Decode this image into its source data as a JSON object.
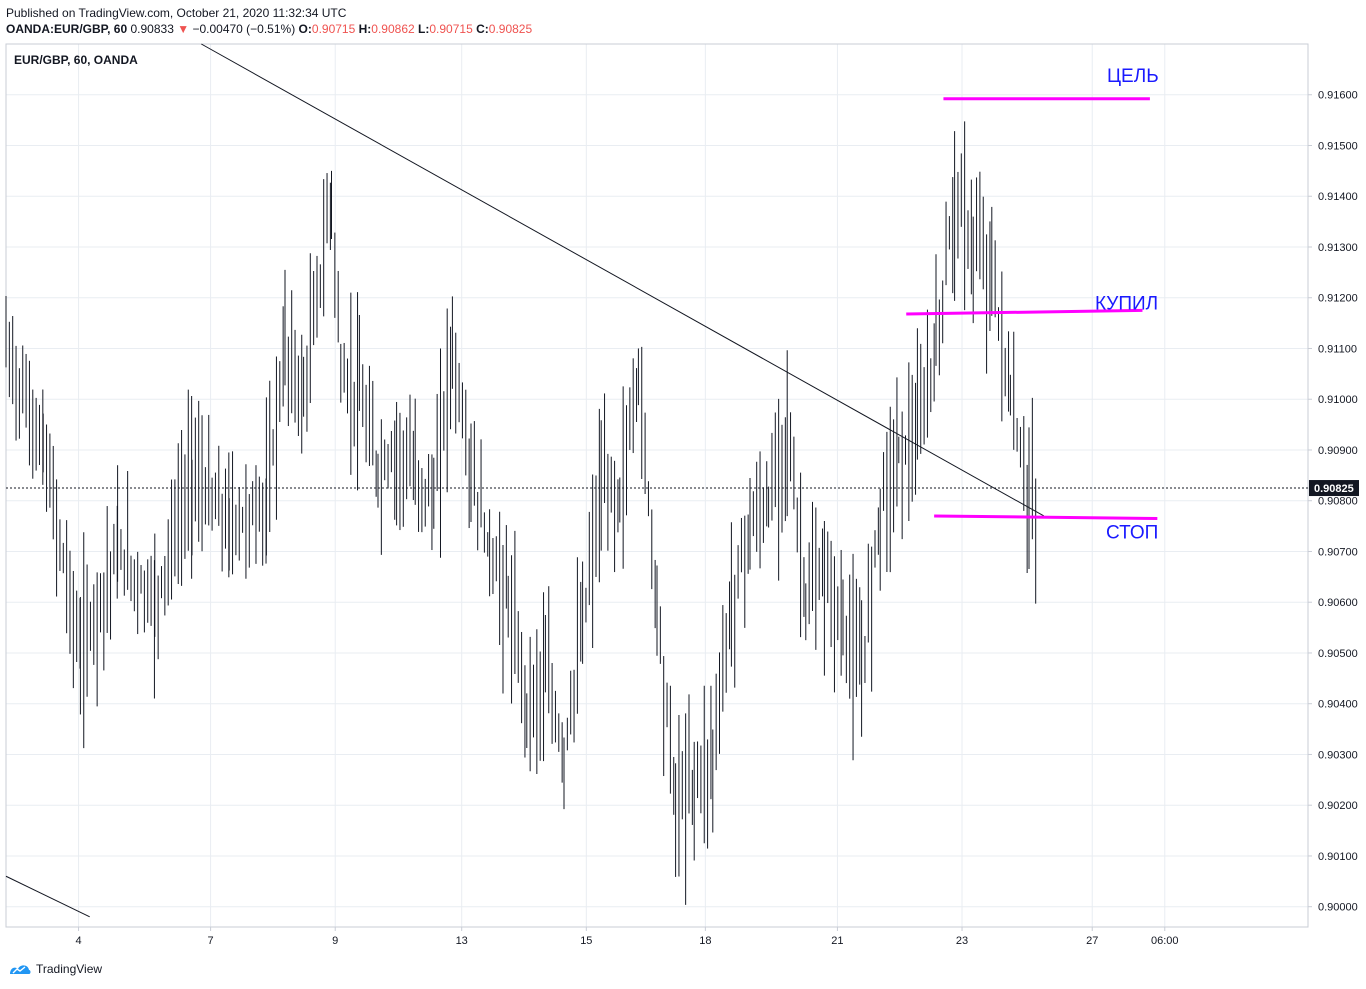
{
  "header": {
    "published": "Published on TradingView.com, October 21, 2020 11:32:34 UTC",
    "symbol": "OANDA:EUR/GBP, 60",
    "last": "0.90833",
    "arrow": "▼",
    "change": "−0.00470 (−0.51%)",
    "o_label": "O:",
    "o": "0.90715",
    "h_label": "H:",
    "h": "0.90862",
    "l_label": "L:",
    "l": "0.90715",
    "c_label": "C:",
    "c": "0.90825"
  },
  "footer": {
    "brand": "TradingView"
  },
  "colors": {
    "accent": "#ef5350",
    "annotation": "#ff00ff",
    "label": "#1a1aff",
    "grid": "#e9edf2"
  },
  "chart_data": {
    "type": "line",
    "title": "EUR/GBP, 60, OANDA",
    "ylim": [
      0.8996,
      0.917
    ],
    "y_ticks": [
      0.9,
      0.901,
      0.902,
      0.903,
      0.904,
      0.905,
      0.906,
      0.907,
      0.908,
      0.909,
      0.91,
      0.911,
      0.912,
      0.913,
      0.914,
      0.915,
      0.916
    ],
    "y_tick_labels": [
      "0.90000",
      "0.90100",
      "0.90200",
      "0.90300",
      "0.90400",
      "0.90500",
      "0.90600",
      "0.90700",
      "0.90800",
      "0.90900",
      "0.91000",
      "0.91100",
      "0.91200",
      "0.91300",
      "0.91400",
      "0.91500",
      "0.91600"
    ],
    "x_ticks": [
      "4",
      "7",
      "9",
      "13",
      "15",
      "18",
      "21",
      "23",
      "27",
      "06:00"
    ],
    "last_price_label": "0.90825",
    "last_price": 0.90825,
    "grid": true,
    "price_path": [
      [
        0,
        0.911
      ],
      [
        2,
        0.909
      ],
      [
        4,
        0.905
      ],
      [
        6,
        0.907
      ],
      [
        8,
        0.906
      ],
      [
        10,
        0.9085
      ],
      [
        12,
        0.9075
      ],
      [
        14,
        0.9079
      ],
      [
        15,
        0.911
      ],
      [
        16,
        0.91
      ],
      [
        17.5,
        0.914
      ],
      [
        18,
        0.9105
      ],
      [
        19,
        0.91
      ],
      [
        20,
        0.9085
      ],
      [
        21,
        0.909
      ],
      [
        22,
        0.9085
      ],
      [
        23,
        0.908
      ],
      [
        24,
        0.911
      ],
      [
        25,
        0.9085
      ],
      [
        26,
        0.907
      ],
      [
        27,
        0.906
      ],
      [
        28,
        0.904
      ],
      [
        29,
        0.9045
      ],
      [
        30,
        0.903
      ],
      [
        31,
        0.9055
      ],
      [
        32,
        0.9082
      ],
      [
        33,
        0.908
      ],
      [
        34,
        0.9105
      ],
      [
        35,
        0.906
      ],
      [
        36,
        0.902
      ],
      [
        37,
        0.9025
      ],
      [
        38,
        0.903
      ],
      [
        39,
        0.906
      ],
      [
        40,
        0.9075
      ],
      [
        41,
        0.9079
      ],
      [
        42,
        0.9095
      ],
      [
        43,
        0.906
      ],
      [
        44,
        0.9065
      ],
      [
        45,
        0.9055
      ],
      [
        46,
        0.9045
      ],
      [
        47,
        0.908
      ],
      [
        48,
        0.909
      ],
      [
        49,
        0.9092
      ],
      [
        50,
        0.911
      ],
      [
        51,
        0.914
      ],
      [
        52,
        0.913
      ],
      [
        53,
        0.9125
      ],
      [
        54,
        0.91
      ],
      [
        55,
        0.908
      ],
      [
        55.5,
        0.9078
      ]
    ],
    "trendlines": [
      {
        "x1": 10.5,
        "y1": 0.917,
        "x2": 55.8,
        "y2": 0.9077
      },
      {
        "x1": 0,
        "y1": 0.9006,
        "x2": 4.5,
        "y2": 0.8998
      }
    ],
    "levels": [
      {
        "label": "ЦЕЛЬ",
        "y_start": 0.91592,
        "y_end": 0.91592,
        "x_start": 50.4,
        "x_end": 61.5
      },
      {
        "label": "КУПИЛ",
        "y_start": 0.91168,
        "y_end": 0.91175,
        "x_start": 48.4,
        "x_end": 61.1
      },
      {
        "label": "СТОП",
        "y_start": 0.9077,
        "y_end": 0.90765,
        "x_start": 49.9,
        "x_end": 61.9
      }
    ]
  }
}
